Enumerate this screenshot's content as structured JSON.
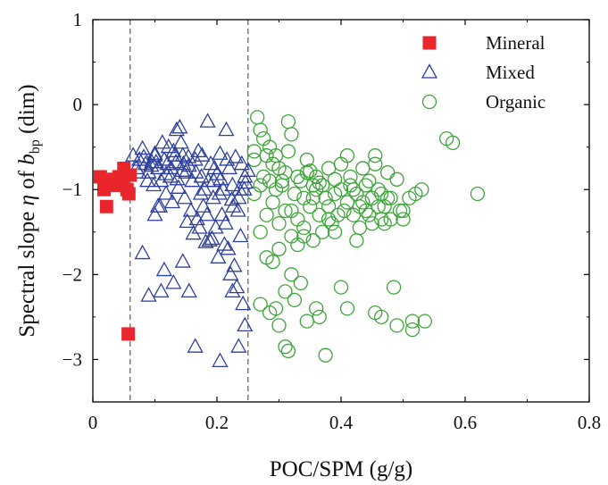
{
  "chart_data": {
    "type": "scatter",
    "xlabel": "POC/SPM (g/g)",
    "ylabel": {
      "prefix": "Spectral slope ",
      "eta": "η",
      "middle": " of ",
      "b": "b",
      "sub": "bp",
      "suffix": " (dim)"
    },
    "xlim": [
      0,
      0.8
    ],
    "ylim": [
      -3.5,
      1
    ],
    "xticks": [
      0,
      0.2,
      0.4,
      0.6,
      0.8
    ],
    "xtick_labels": [
      "0",
      "0.2",
      "0.4",
      "0.6",
      "0.8"
    ],
    "yticks": [
      1,
      0,
      -1,
      -2,
      -3
    ],
    "ytick_labels": [
      "1",
      "0",
      "−1",
      "−2",
      "−3"
    ],
    "grid": false,
    "legend_position": "top-right",
    "reference_lines_x": [
      0.06,
      0.25
    ],
    "series": [
      {
        "name": "Mineral",
        "marker": "filled-square",
        "color": "#e8262b",
        "points": [
          [
            0.012,
            -0.85
          ],
          [
            0.018,
            -1.0
          ],
          [
            0.022,
            -1.2
          ],
          [
            0.028,
            -0.88
          ],
          [
            0.035,
            -0.95
          ],
          [
            0.042,
            -0.85
          ],
          [
            0.048,
            -0.92
          ],
          [
            0.05,
            -0.75
          ],
          [
            0.055,
            -1.0
          ],
          [
            0.058,
            -1.05
          ],
          [
            0.06,
            -0.83
          ],
          [
            0.057,
            -2.7
          ]
        ]
      },
      {
        "name": "Mixed",
        "marker": "open-triangle",
        "color": "#2d3f9e",
        "points": [
          [
            0.065,
            -0.6
          ],
          [
            0.07,
            -0.75
          ],
          [
            0.075,
            -0.65
          ],
          [
            0.08,
            -0.52
          ],
          [
            0.085,
            -0.7
          ],
          [
            0.09,
            -0.8
          ],
          [
            0.095,
            -0.68
          ],
          [
            0.1,
            -0.6
          ],
          [
            0.105,
            -0.75
          ],
          [
            0.11,
            -0.9
          ],
          [
            0.115,
            -0.65
          ],
          [
            0.12,
            -0.7
          ],
          [
            0.125,
            -0.85
          ],
          [
            0.13,
            -0.55
          ],
          [
            0.135,
            -0.3
          ],
          [
            0.14,
            -0.27
          ],
          [
            0.145,
            -0.6
          ],
          [
            0.15,
            -0.8
          ],
          [
            0.155,
            -0.72
          ],
          [
            0.16,
            -0.9
          ],
          [
            0.165,
            -0.65
          ],
          [
            0.17,
            -0.55
          ],
          [
            0.175,
            -0.85
          ],
          [
            0.18,
            -1.0
          ],
          [
            0.185,
            -0.2
          ],
          [
            0.19,
            -0.7
          ],
          [
            0.195,
            -0.9
          ],
          [
            0.2,
            -0.82
          ],
          [
            0.205,
            -0.58
          ],
          [
            0.21,
            -1.0
          ],
          [
            0.215,
            -0.3
          ],
          [
            0.22,
            -0.75
          ],
          [
            0.225,
            -0.95
          ],
          [
            0.23,
            -0.62
          ],
          [
            0.235,
            -1.1
          ],
          [
            0.24,
            -0.7
          ],
          [
            0.245,
            -0.85
          ],
          [
            0.25,
            -0.78
          ],
          [
            0.088,
            -0.9
          ],
          [
            0.098,
            -0.95
          ],
          [
            0.108,
            -1.2
          ],
          [
            0.118,
            -1.05
          ],
          [
            0.128,
            -1.15
          ],
          [
            0.138,
            -0.98
          ],
          [
            0.148,
            -1.1
          ],
          [
            0.158,
            -1.25
          ],
          [
            0.168,
            -1.35
          ],
          [
            0.178,
            -1.2
          ],
          [
            0.188,
            -1.6
          ],
          [
            0.198,
            -1.45
          ],
          [
            0.208,
            -1.3
          ],
          [
            0.218,
            -1.7
          ],
          [
            0.228,
            -1.9
          ],
          [
            0.238,
            -1.55
          ],
          [
            0.1,
            -1.3
          ],
          [
            0.105,
            -1.2
          ],
          [
            0.112,
            -0.45
          ],
          [
            0.122,
            -0.5
          ],
          [
            0.132,
            -0.6
          ],
          [
            0.142,
            -0.45
          ],
          [
            0.152,
            -1.38
          ],
          [
            0.162,
            -1.52
          ],
          [
            0.172,
            -1.45
          ],
          [
            0.182,
            -1.62
          ],
          [
            0.192,
            -1.58
          ],
          [
            0.202,
            -1.8
          ],
          [
            0.212,
            -1.65
          ],
          [
            0.222,
            -2.0
          ],
          [
            0.232,
            -2.15
          ],
          [
            0.242,
            -2.35
          ],
          [
            0.08,
            -1.75
          ],
          [
            0.09,
            -2.25
          ],
          [
            0.11,
            -2.2
          ],
          [
            0.115,
            -1.95
          ],
          [
            0.13,
            -2.1
          ],
          [
            0.145,
            -1.85
          ],
          [
            0.155,
            -2.2
          ],
          [
            0.165,
            -2.85
          ],
          [
            0.205,
            -3.02
          ],
          [
            0.225,
            -2.2
          ],
          [
            0.235,
            -2.85
          ],
          [
            0.245,
            -2.6
          ],
          [
            0.1,
            -0.58
          ],
          [
            0.118,
            -0.82
          ],
          [
            0.126,
            -0.75
          ],
          [
            0.136,
            -0.88
          ],
          [
            0.146,
            -0.7
          ],
          [
            0.166,
            -0.8
          ],
          [
            0.176,
            -0.6
          ],
          [
            0.186,
            -0.9
          ],
          [
            0.196,
            -0.75
          ],
          [
            0.206,
            -0.88
          ],
          [
            0.216,
            -0.65
          ],
          [
            0.226,
            -1.2
          ],
          [
            0.236,
            -1.0
          ],
          [
            0.246,
            -0.92
          ],
          [
            0.074,
            -0.8
          ],
          [
            0.082,
            -0.62
          ],
          [
            0.094,
            -0.72
          ],
          [
            0.102,
            -0.68
          ],
          [
            0.134,
            -0.68
          ],
          [
            0.144,
            -0.78
          ],
          [
            0.154,
            -0.62
          ],
          [
            0.174,
            -1.05
          ],
          [
            0.184,
            -1.3
          ],
          [
            0.194,
            -1.1
          ],
          [
            0.204,
            -1.05
          ],
          [
            0.214,
            -1.4
          ],
          [
            0.224,
            -1.12
          ],
          [
            0.234,
            -1.25
          ],
          [
            0.244,
            -1.0
          ]
        ]
      },
      {
        "name": "Organic",
        "marker": "open-circle",
        "color": "#3ea43a",
        "points": [
          [
            0.26,
            -0.65
          ],
          [
            0.265,
            -0.15
          ],
          [
            0.27,
            -0.3
          ],
          [
            0.275,
            -0.85
          ],
          [
            0.28,
            -0.6
          ],
          [
            0.285,
            -0.9
          ],
          [
            0.29,
            -0.7
          ],
          [
            0.295,
            -1.0
          ],
          [
            0.3,
            -0.75
          ],
          [
            0.305,
            -0.95
          ],
          [
            0.31,
            -0.8
          ],
          [
            0.315,
            -0.2
          ],
          [
            0.32,
            -0.35
          ],
          [
            0.325,
            -1.05
          ],
          [
            0.33,
            -0.85
          ],
          [
            0.335,
            -0.9
          ],
          [
            0.34,
            -1.1
          ],
          [
            0.345,
            -0.8
          ],
          [
            0.35,
            -1.2
          ],
          [
            0.355,
            -0.95
          ],
          [
            0.36,
            -1.0
          ],
          [
            0.365,
            -1.3
          ],
          [
            0.37,
            -1.5
          ],
          [
            0.375,
            -1.1
          ],
          [
            0.38,
            -1.2
          ],
          [
            0.385,
            -1.4
          ],
          [
            0.39,
            -1.05
          ],
          [
            0.395,
            -1.3
          ],
          [
            0.4,
            -0.7
          ],
          [
            0.405,
            -1.25
          ],
          [
            0.41,
            -0.6
          ],
          [
            0.415,
            -0.85
          ],
          [
            0.42,
            -1.3
          ],
          [
            0.425,
            -1.6
          ],
          [
            0.43,
            -1.2
          ],
          [
            0.435,
            -0.75
          ],
          [
            0.44,
            -0.95
          ],
          [
            0.445,
            -1.3
          ],
          [
            0.45,
            -1.4
          ],
          [
            0.455,
            -0.6
          ],
          [
            0.46,
            -1.2
          ],
          [
            0.465,
            -1.35
          ],
          [
            0.47,
            -1.4
          ],
          [
            0.475,
            -0.8
          ],
          [
            0.48,
            -1.1
          ],
          [
            0.485,
            -2.15
          ],
          [
            0.49,
            -0.88
          ],
          [
            0.495,
            -1.25
          ],
          [
            0.5,
            -1.35
          ],
          [
            0.51,
            -1.1
          ],
          [
            0.515,
            -2.55
          ],
          [
            0.52,
            -1.05
          ],
          [
            0.53,
            -1.0
          ],
          [
            0.535,
            -2.55
          ],
          [
            0.57,
            -0.4
          ],
          [
            0.58,
            -0.45
          ],
          [
            0.62,
            -1.05
          ],
          [
            0.27,
            -1.5
          ],
          [
            0.28,
            -1.8
          ],
          [
            0.29,
            -1.85
          ],
          [
            0.3,
            -1.7
          ],
          [
            0.31,
            -2.2
          ],
          [
            0.32,
            -2.0
          ],
          [
            0.325,
            -2.3
          ],
          [
            0.33,
            -1.65
          ],
          [
            0.335,
            -2.1
          ],
          [
            0.34,
            -1.55
          ],
          [
            0.36,
            -2.4
          ],
          [
            0.365,
            -2.5
          ],
          [
            0.4,
            -2.15
          ],
          [
            0.27,
            -2.35
          ],
          [
            0.285,
            -2.45
          ],
          [
            0.295,
            -2.4
          ],
          [
            0.31,
            -2.85
          ],
          [
            0.315,
            -2.9
          ],
          [
            0.345,
            -2.55
          ],
          [
            0.375,
            -2.95
          ],
          [
            0.455,
            -2.45
          ],
          [
            0.465,
            -2.5
          ],
          [
            0.49,
            -2.6
          ],
          [
            0.515,
            -2.65
          ],
          [
            0.3,
            -2.6
          ],
          [
            0.41,
            -2.4
          ],
          [
            0.26,
            -1.05
          ],
          [
            0.27,
            -0.95
          ],
          [
            0.28,
            -1.3
          ],
          [
            0.29,
            -1.15
          ],
          [
            0.3,
            -1.4
          ],
          [
            0.31,
            -1.25
          ],
          [
            0.32,
            -1.55
          ],
          [
            0.33,
            -1.35
          ],
          [
            0.34,
            -1.45
          ],
          [
            0.355,
            -1.6
          ],
          [
            0.36,
            -0.85
          ],
          [
            0.37,
            -0.95
          ],
          [
            0.38,
            -0.75
          ],
          [
            0.39,
            -1.5
          ],
          [
            0.4,
            -1.0
          ],
          [
            0.41,
            -1.15
          ],
          [
            0.42,
            -1.0
          ],
          [
            0.43,
            -1.45
          ],
          [
            0.44,
            -1.25
          ],
          [
            0.45,
            -1.1
          ],
          [
            0.46,
            -1.0
          ],
          [
            0.47,
            -1.2
          ],
          [
            0.48,
            -1.35
          ],
          [
            0.5,
            -1.25
          ],
          [
            0.26,
            -0.55
          ],
          [
            0.275,
            -0.4
          ],
          [
            0.285,
            -0.5
          ],
          [
            0.295,
            -0.6
          ],
          [
            0.305,
            -0.9
          ],
          [
            0.315,
            -0.55
          ],
          [
            0.345,
            -0.65
          ],
          [
            0.35,
            -0.78
          ],
          [
            0.32,
            -1.25
          ],
          [
            0.355,
            -1.1
          ],
          [
            0.365,
            -0.92
          ],
          [
            0.38,
            -1.35
          ],
          [
            0.39,
            -0.88
          ],
          [
            0.415,
            -0.95
          ],
          [
            0.425,
            -1.05
          ],
          [
            0.435,
            -1.15
          ],
          [
            0.445,
            -0.9
          ],
          [
            0.455,
            -0.7
          ],
          [
            0.465,
            -1.05
          ],
          [
            0.475,
            -1.1
          ]
        ]
      }
    ]
  }
}
